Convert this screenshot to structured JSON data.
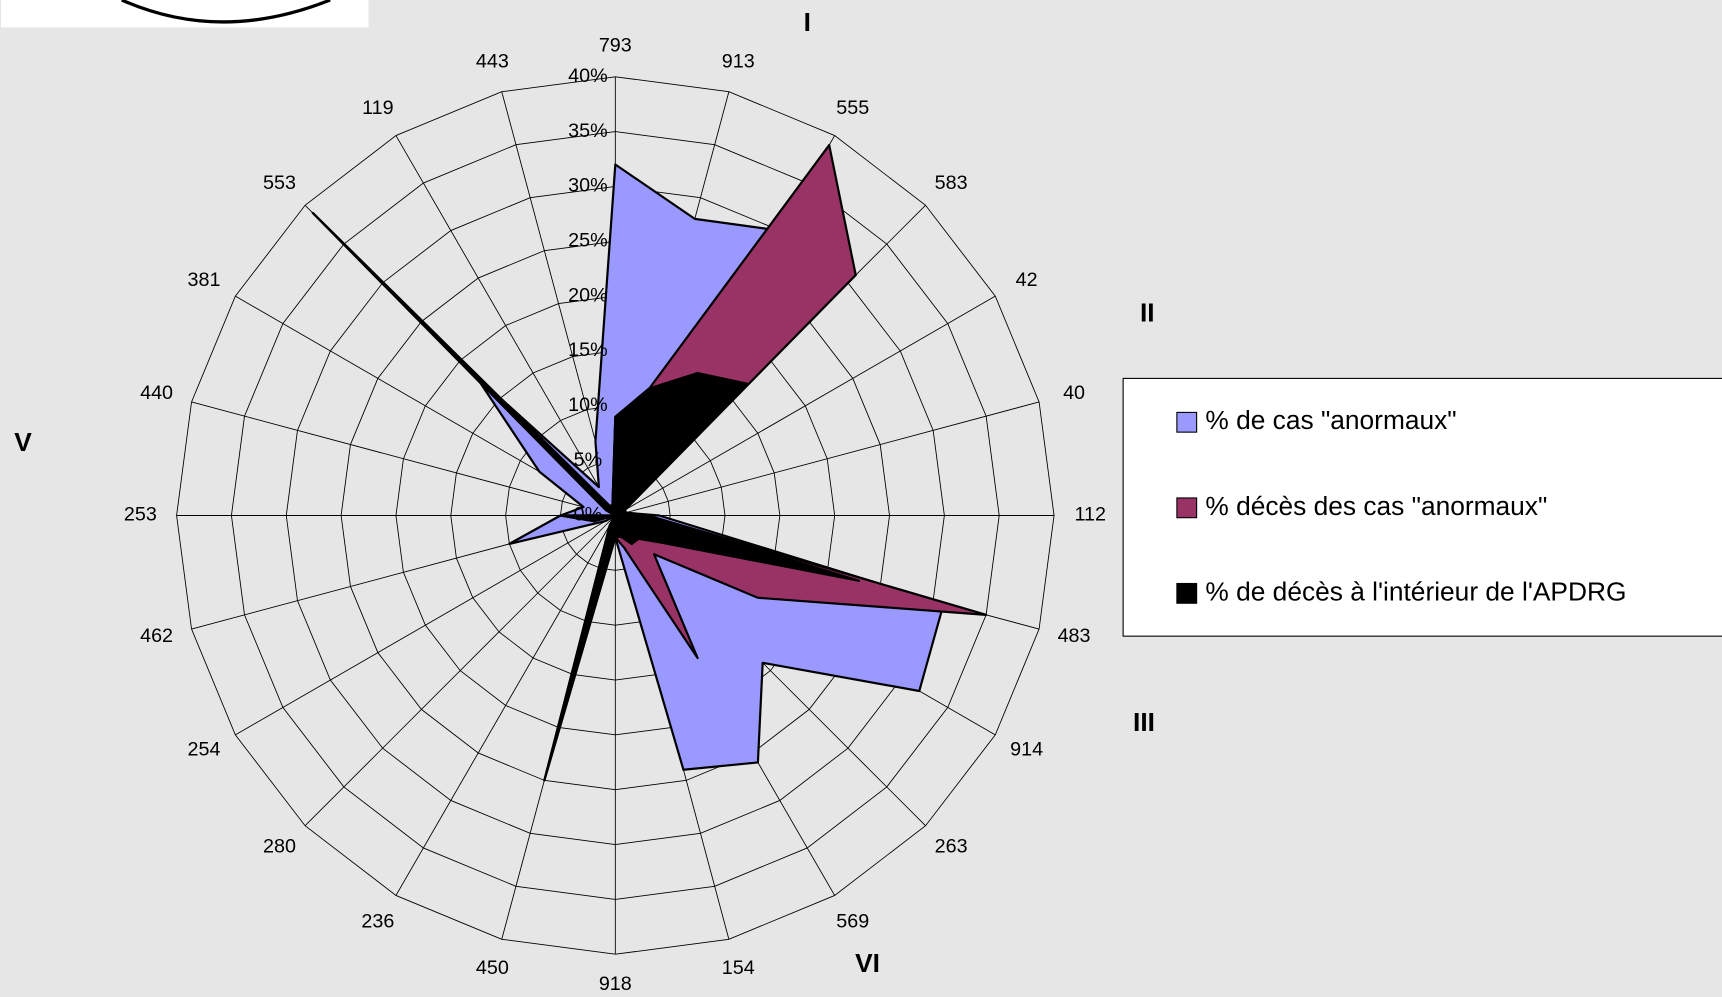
{
  "chart_data": {
    "type": "radar",
    "categories": [
      "793",
      "913",
      "555",
      "583",
      "42",
      "40",
      "112",
      "483",
      "914",
      "263",
      "569",
      "154",
      "918",
      "450",
      "236",
      "280",
      "254",
      "462",
      "253",
      "440",
      "381",
      "553",
      "119",
      "443"
    ],
    "series": [
      {
        "name": "% de cas \"anormaux\"",
        "color": "#9999ff",
        "values": [
          32,
          28,
          30,
          17,
          1,
          1,
          4,
          31,
          32,
          19,
          26,
          24,
          2,
          2,
          1,
          0,
          1,
          10,
          5,
          3,
          8,
          18,
          3,
          7
        ]
      },
      {
        "name": "% décès des cas \"anormaux\"",
        "color": "#993366",
        "values": [
          9,
          12,
          39,
          31,
          1,
          1,
          3,
          35,
          15,
          5,
          15,
          3,
          2,
          25,
          1,
          0,
          0,
          2,
          5,
          0,
          1,
          39,
          1,
          1
        ]
      },
      {
        "name": "% de décès à l'intérieur de l'APDRG",
        "color": "#000000",
        "values": [
          9,
          12,
          15,
          17,
          1,
          1,
          3,
          23,
          5,
          3,
          3,
          2,
          2,
          25,
          1,
          0,
          0,
          2,
          5,
          0,
          1,
          39,
          1,
          1
        ]
      }
    ],
    "rlim": [
      0,
      40
    ],
    "rticks": [
      {
        "value": 0,
        "label": "0%"
      },
      {
        "value": 5,
        "label": "5%"
      },
      {
        "value": 10,
        "label": "10%"
      },
      {
        "value": 15,
        "label": "15%"
      },
      {
        "value": 20,
        "label": "20%"
      },
      {
        "value": 25,
        "label": "25%"
      },
      {
        "value": 30,
        "label": "30%"
      },
      {
        "value": 35,
        "label": "35%"
      },
      {
        "value": 40,
        "label": "40%"
      }
    ],
    "grid": true,
    "annotations": [
      "I",
      "II",
      "III",
      "V",
      "VI"
    ]
  }
}
